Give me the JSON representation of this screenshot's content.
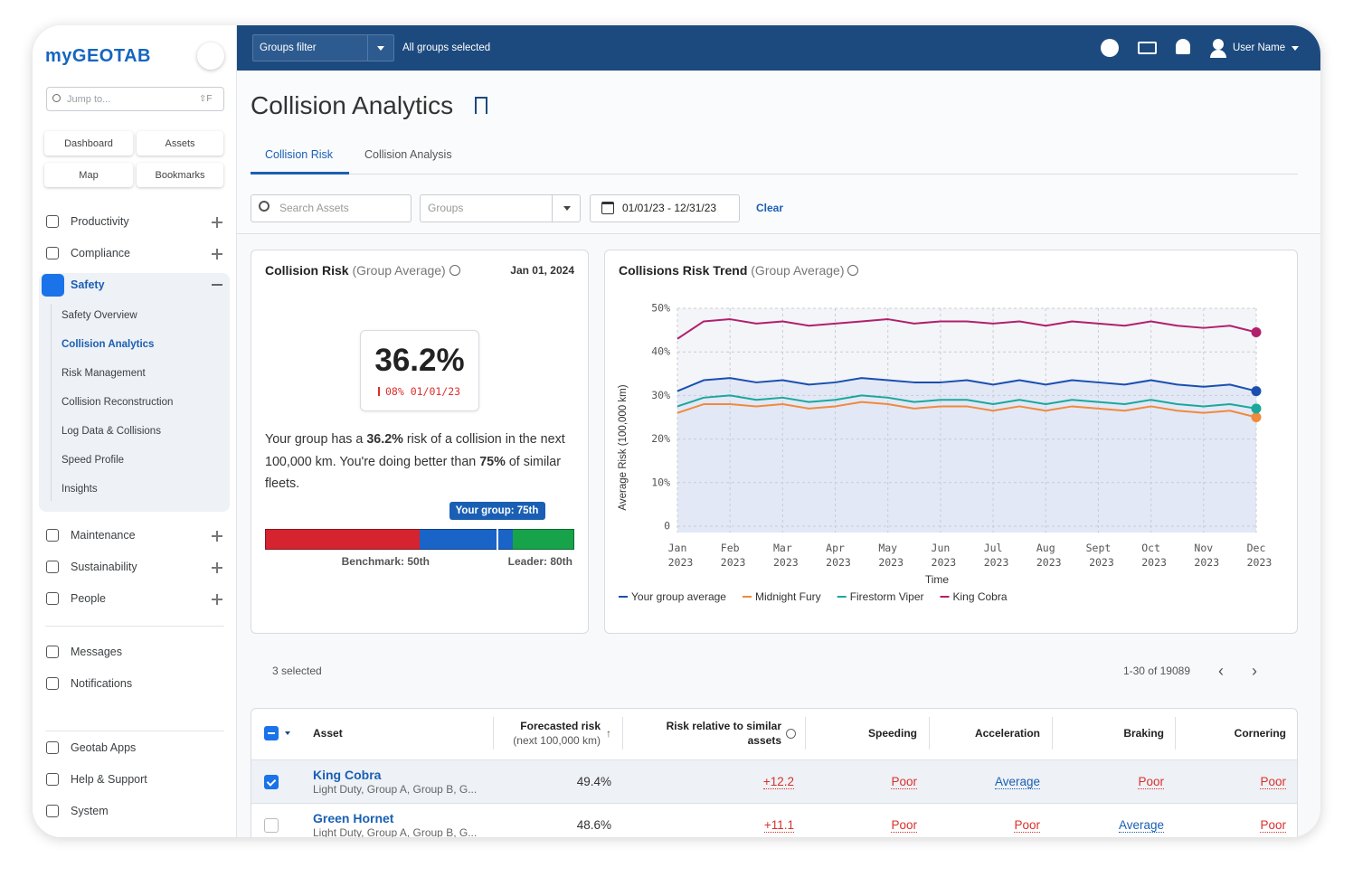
{
  "sidebar": {
    "logo": "myGEOTAB",
    "search_placeholder": "Jump to...",
    "shortcut": "⇧F",
    "quick_links": [
      "Dashboard",
      "Assets",
      "Map",
      "Bookmarks"
    ],
    "nav": [
      "Productivity",
      "Compliance",
      "Safety"
    ],
    "safety_items": [
      "Safety Overview",
      "Collision Analytics",
      "Risk Management",
      "Collision Reconstruction",
      "Log Data & Collisions",
      "Speed Profile",
      "Insights"
    ],
    "nav2": [
      "Maintenance",
      "Sustainability",
      "People"
    ],
    "nav3": [
      "Messages",
      "Notifications"
    ],
    "nav4": [
      "Geotab Apps",
      "Help & Support",
      "System"
    ]
  },
  "header": {
    "groups_filter": "Groups filter",
    "groups_status": "All groups selected",
    "user": "User Name"
  },
  "page": {
    "title": "Collision Analytics",
    "tabs": [
      "Collision Risk",
      "Collision Analysis"
    ],
    "search_placeholder": "Search Assets",
    "groups_placeholder": "Groups",
    "date_range": "01/01/23 - 12/31/23",
    "clear": "Clear"
  },
  "risk_card": {
    "title": "Collision Risk",
    "title_suffix": "(Group Average)",
    "date": "Jan 01, 2024",
    "value": "36.2%",
    "change": "08% 01/01/23",
    "description": [
      "Your group has a ",
      "36.2%",
      " risk of a collision in the next 100,000 km. You're doing better than ",
      "75%",
      " of similar fleets."
    ],
    "percentile": {
      "xlim": [
        0,
        100
      ],
      "benchmark": {
        "value": 50,
        "label": "Benchmark: 50th"
      },
      "leader": {
        "value": 80,
        "label": "Leader: 80th"
      },
      "group": {
        "value": 75,
        "label": "Your group: 75th"
      },
      "colors": [
        "#d5232f",
        "#1a64c8",
        "#16a34a"
      ]
    }
  },
  "chart_data": {
    "type": "line",
    "title": "Collisions Risk Trend",
    "title_suffix": "(Group Average)",
    "x_label": "Time",
    "y_label": "Average Risk (100,000 km)",
    "x": [
      0,
      0.5,
      1,
      1.5,
      2,
      2.5,
      3,
      3.5,
      4,
      4.5,
      5,
      5.5,
      6,
      6.5,
      7,
      7.5,
      8,
      8.5,
      9,
      9.5,
      10,
      10.5,
      11
    ],
    "xlim": [
      0,
      11
    ],
    "xticks": [
      {
        "value": 0,
        "label": "Jan 2023"
      },
      {
        "value": 1,
        "label": "Feb 2023"
      },
      {
        "value": 2,
        "label": "Mar 2023"
      },
      {
        "value": 3,
        "label": "Apr 2023"
      },
      {
        "value": 4,
        "label": "May 2023"
      },
      {
        "value": 5,
        "label": "Jun 2023"
      },
      {
        "value": 6,
        "label": "Jul 2023"
      },
      {
        "value": 7,
        "label": "Aug 2023"
      },
      {
        "value": 8,
        "label": "Sept 2023"
      },
      {
        "value": 9,
        "label": "Oct 2023"
      },
      {
        "value": 10,
        "label": "Nov 2023"
      },
      {
        "value": 11,
        "label": "Dec 2023"
      }
    ],
    "ylim": [
      0,
      50
    ],
    "yticks": [
      0,
      {
        "value": 10,
        "label": "10%"
      },
      {
        "value": 20,
        "label": "20%"
      },
      {
        "value": 30,
        "label": "30%"
      },
      {
        "value": 40,
        "label": "40%"
      },
      {
        "value": 50,
        "label": "50%"
      }
    ],
    "grid": true,
    "area_series": 0,
    "series": [
      {
        "name": "Your group average",
        "color": "#1a4fb0",
        "values": [
          31,
          33.5,
          34,
          33,
          33.5,
          32.5,
          33,
          34,
          33.5,
          33,
          33,
          33.5,
          32.5,
          33.5,
          32.5,
          33.5,
          33,
          32.5,
          33.5,
          32.5,
          32,
          32.5,
          31
        ]
      },
      {
        "name": "Midnight Fury",
        "color": "#f08a3c",
        "values": [
          26,
          28,
          28,
          27.5,
          28,
          27,
          27.5,
          28.5,
          28,
          27,
          27.5,
          27.5,
          26.5,
          27.5,
          26.5,
          27.5,
          27,
          26.5,
          27.5,
          26.5,
          26,
          26.5,
          25
        ]
      },
      {
        "name": "Firestorm Viper",
        "color": "#1aa89c",
        "values": [
          27.5,
          29.5,
          30,
          29,
          29.5,
          28.5,
          29,
          30,
          29.5,
          28.5,
          29,
          29,
          28,
          29,
          28,
          29,
          28.5,
          28,
          29,
          28,
          27.5,
          28,
          27
        ]
      },
      {
        "name": "King Cobra",
        "color": "#b1206c",
        "values": [
          43,
          47,
          47.5,
          46.5,
          47,
          46,
          46.5,
          47,
          47.5,
          46.5,
          47,
          47,
          46.5,
          47,
          46,
          47,
          46.5,
          46,
          47,
          46,
          45.5,
          46,
          44.5
        ]
      }
    ]
  },
  "table": {
    "selected": "3 selected",
    "pagination": "1-30 of 19089",
    "columns": [
      {
        "title": "Asset"
      },
      {
        "title": "Forecasted risk",
        "subtitle": "(next 100,000 km)"
      },
      {
        "title": "Risk relative to similar assets"
      },
      {
        "title": "Speeding"
      },
      {
        "title": "Acceleration"
      },
      {
        "title": "Braking"
      },
      {
        "title": "Cornering"
      }
    ],
    "rating_colors": {
      "Poor": "#d9302c",
      "Average": "#1a5fb4"
    },
    "relative_color": "#d9302c",
    "rows": [
      {
        "checked": true,
        "name": "King Cobra",
        "groups": "Light Duty, Group A, Group B, G...",
        "risk": "49.4%",
        "relative": "+12.2",
        "speeding": "Poor",
        "acceleration": "Average",
        "braking": "Poor",
        "cornering": "Poor"
      },
      {
        "checked": false,
        "name": "Green Hornet",
        "groups": "Light Duty, Group A, Group B, G...",
        "risk": "48.6%",
        "relative": "+11.1",
        "speeding": "Poor",
        "acceleration": "Poor",
        "braking": "Average",
        "cornering": "Poor"
      }
    ]
  }
}
